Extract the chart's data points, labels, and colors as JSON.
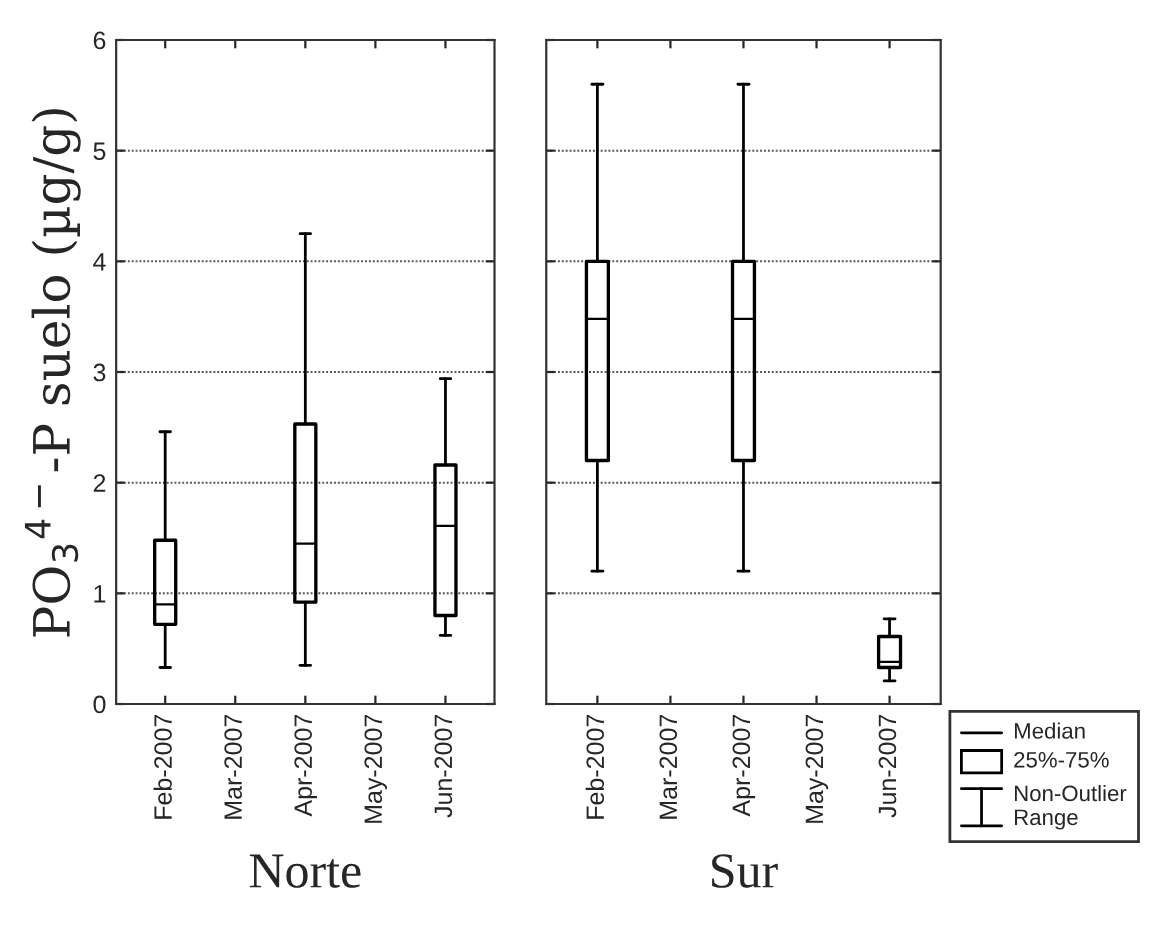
{
  "chart_data": [
    {
      "type": "box",
      "xlabel": "Norte",
      "ylabel": "PO$_{3}$$^{4−}$-P suelo (µg/g)",
      "categories": [
        "Feb-2007",
        "Mar-2007",
        "Apr-2007",
        "May-2007",
        "Jun-2007"
      ],
      "boxes": [
        {
          "low": 0.33,
          "q1": 0.72,
          "median": 0.9,
          "q3": 1.48,
          "high": 2.46
        },
        null,
        {
          "low": 0.35,
          "q1": 0.92,
          "median": 1.45,
          "q3": 2.53,
          "high": 4.25
        },
        null,
        {
          "low": 0.62,
          "q1": 0.8,
          "median": 1.61,
          "q3": 2.16,
          "high": 2.94
        }
      ],
      "color": "#000000",
      "ylim": [
        0,
        6
      ],
      "yticks": [
        0,
        1,
        2,
        3,
        4,
        5,
        6
      ],
      "grid": "y"
    },
    {
      "type": "box",
      "xlabel": "Sur",
      "categories": [
        "Feb-2007",
        "Mar-2007",
        "Apr-2007",
        "May-2007",
        "Jun-2007"
      ],
      "boxes": [
        {
          "low": 1.2,
          "q1": 2.2,
          "median": 3.48,
          "q3": 4.0,
          "high": 5.6
        },
        null,
        {
          "low": 1.2,
          "q1": 2.2,
          "median": 3.48,
          "q3": 4.0,
          "high": 5.6
        },
        null,
        {
          "low": 0.21,
          "q1": 0.33,
          "median": 0.38,
          "q3": 0.61,
          "high": 0.77
        }
      ],
      "color": "#000000",
      "ylim": [
        0,
        6
      ],
      "yticks": [
        0,
        1,
        2,
        3,
        4,
        5,
        6
      ],
      "grid": "y",
      "tick_labels": "x",
      "annotations": [
        "Median",
        "25%-75%",
        "Non-Outlier\nRange"
      ]
    }
  ]
}
